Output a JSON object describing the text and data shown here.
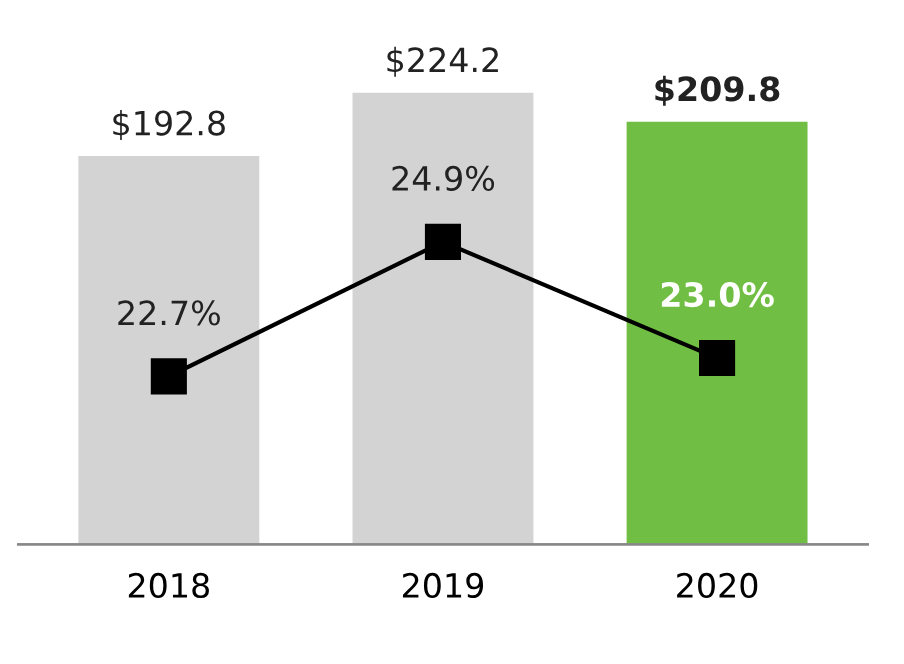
{
  "chart_data": {
    "type": "bar",
    "categories": [
      "2018",
      "2019",
      "2020"
    ],
    "tick_labels": "x",
    "grid": false,
    "legend": false,
    "series": [
      {
        "colors": [
          "#d3d3d3",
          "#d3d3d3",
          "#70bf44"
        ],
        "values": [
          192.8,
          224.2,
          209.8
        ],
        "value_labels": [
          "$192.8",
          "$224.2",
          "$209.8"
        ]
      },
      {
        "type": "line",
        "axis": "y2",
        "color": "#000000",
        "marker": "square",
        "line_style": "solid",
        "values": [
          22.7,
          24.9,
          23.0
        ],
        "value_labels": [
          "22.7%",
          "24.9%",
          "23.0%"
        ]
      }
    ]
  }
}
